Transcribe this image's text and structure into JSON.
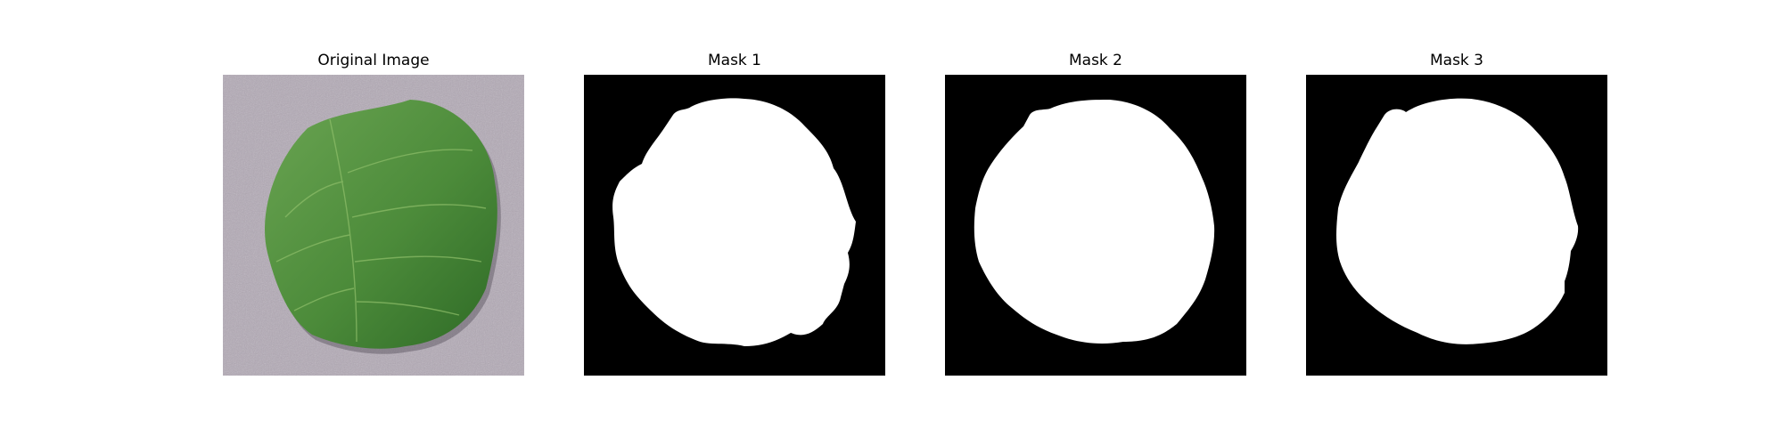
{
  "figure": {
    "panels": [
      {
        "title": "Original Image",
        "kind": "photo",
        "subject": "green-leaf"
      },
      {
        "title": "Mask 1",
        "kind": "mask"
      },
      {
        "title": "Mask 2",
        "kind": "mask"
      },
      {
        "title": "Mask 3",
        "kind": "mask"
      }
    ]
  },
  "colors": {
    "photo_background": "#b3aab6",
    "leaf_dark": "#2e6a26",
    "leaf_mid": "#4c8b3a",
    "leaf_light": "#6aa452",
    "mask_background": "#000000",
    "mask_foreground": "#ffffff"
  }
}
